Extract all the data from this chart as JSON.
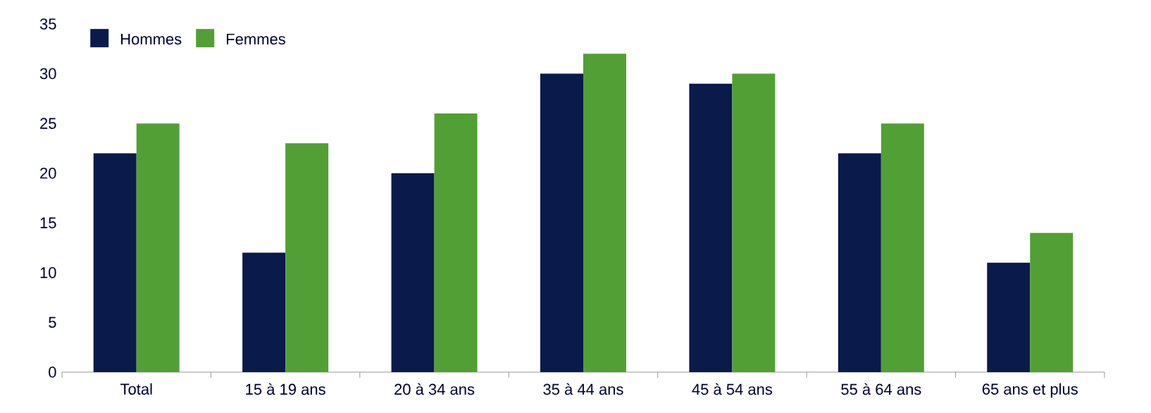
{
  "chart_data": {
    "type": "bar",
    "categories": [
      "Total",
      "15 à 19 ans",
      "20 à 34 ans",
      "35 à 44 ans",
      "45 à 54 ans",
      "55 à 64 ans",
      "65 ans et plus"
    ],
    "series": [
      {
        "name": "Hommes",
        "color": "#0a1a4a",
        "values": [
          22,
          12,
          20,
          30,
          29,
          22,
          11
        ]
      },
      {
        "name": "Femmes",
        "color": "#52a035",
        "values": [
          25,
          23,
          26,
          32,
          30,
          25,
          14
        ]
      }
    ],
    "ylim": [
      0,
      35
    ],
    "yticks": [
      0,
      5,
      10,
      15,
      20,
      25,
      30,
      35
    ],
    "legend": "top left"
  }
}
